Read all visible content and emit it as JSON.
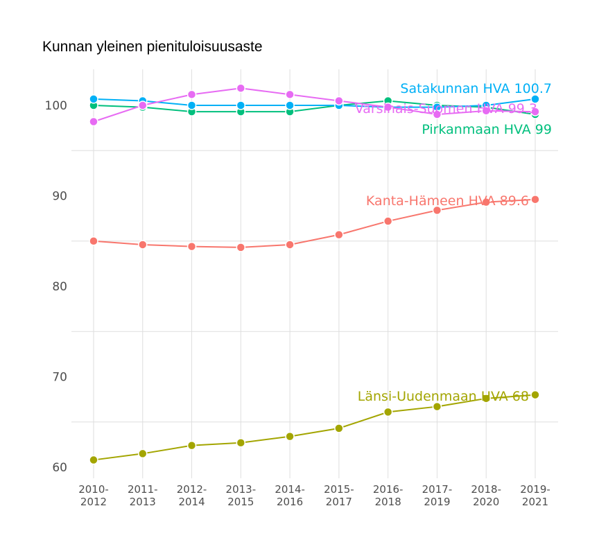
{
  "chart_data": {
    "type": "line",
    "title": "Kunnan yleinen pienituloisuusaste",
    "xlabel": "",
    "ylabel": "",
    "categories": [
      "2010-2012",
      "2011-2013",
      "2012-2014",
      "2013-2015",
      "2014-2016",
      "2015-2017",
      "2016-2018",
      "2017-2019",
      "2018-2020",
      "2019-2021"
    ],
    "ylim": [
      59,
      103.5
    ],
    "yticks": [
      60,
      70,
      80,
      90,
      100
    ],
    "grid": true,
    "legend": "none (end labels)",
    "series": [
      {
        "name": "Kanta-Hämeen HVA",
        "label": "Kanta-Hämeen HVA 89.6",
        "color": "#F8766D",
        "values": [
          85.0,
          84.6,
          84.4,
          84.3,
          84.6,
          85.7,
          87.2,
          88.4,
          89.3,
          89.6
        ]
      },
      {
        "name": "Länsi-Uudenmaan HVA",
        "label": "Länsi-Uudenmaan HVA 68",
        "color": "#A3A500",
        "values": [
          60.8,
          61.5,
          62.4,
          62.7,
          63.4,
          64.3,
          66.1,
          66.7,
          67.6,
          68.0
        ]
      },
      {
        "name": "Pirkanmaan HVA",
        "label": "Pirkanmaan HVA 99",
        "color": "#00BF7D",
        "values": [
          100.0,
          99.8,
          99.3,
          99.3,
          99.3,
          100.0,
          100.5,
          100.0,
          99.8,
          99.0
        ]
      },
      {
        "name": "Satakunnan HVA",
        "label": "Satakunnan HVA 100.7",
        "color": "#00B0F6",
        "values": [
          100.7,
          100.5,
          100.0,
          100.0,
          100.0,
          100.0,
          99.8,
          99.8,
          100.0,
          100.7
        ]
      },
      {
        "name": "Varsinais-Suomen HVA",
        "label": "Varsinais-Suomen HVA 99.3",
        "color": "#E76BF3",
        "values": [
          98.2,
          100.0,
          101.2,
          101.9,
          101.2,
          100.5,
          99.8,
          99.0,
          99.4,
          99.3
        ]
      }
    ]
  }
}
